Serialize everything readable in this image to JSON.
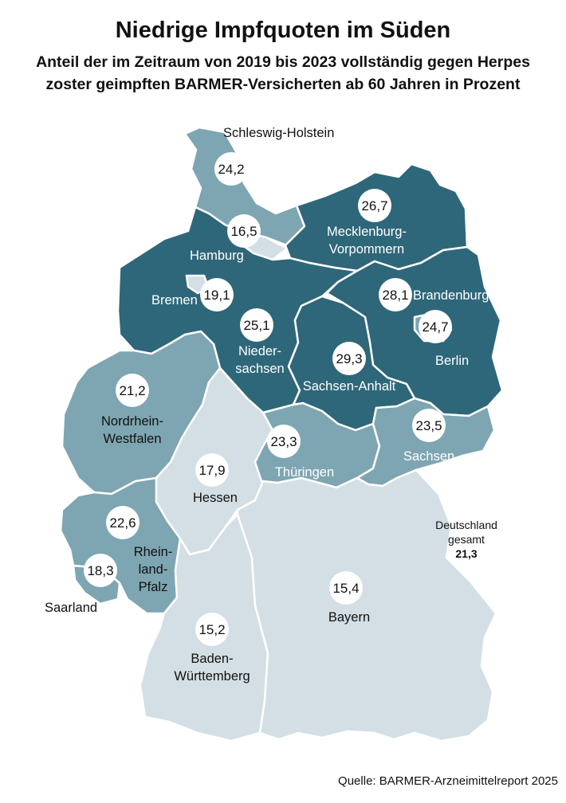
{
  "title": "Niedrige Impfquoten im Süden",
  "subtitle": "Anteil der im Zeitraum von 2019 bis 2023 vollständig gegen Herpes zoster geimpften BARMER-Versicherten ab 60 Jahren in Prozent",
  "source": "Quelle: BARMER-Arzneimittelreport 2025",
  "total": {
    "label_line1": "Deutschland",
    "label_line2": "gesamt",
    "value": "21,3"
  },
  "colors": {
    "high": "#2e6779",
    "mid": "#7ea5b2",
    "low": "#d3dfe4",
    "border": "#ffffff",
    "bubble": "#ffffff"
  },
  "states": [
    {
      "id": "schleswig-holstein",
      "name": "Schleswig-Holstein",
      "value": "24,2",
      "tier": "mid"
    },
    {
      "id": "hamburg",
      "name": "Hamburg",
      "value": "16,5",
      "tier": "low"
    },
    {
      "id": "mecklenburg-vorpommern",
      "name_lines": [
        "Mecklenburg-",
        "Vorpommern"
      ],
      "value": "26,7",
      "tier": "high"
    },
    {
      "id": "bremen",
      "name": "Bremen",
      "value": "19,1",
      "tier": "low"
    },
    {
      "id": "niedersachsen",
      "name_lines": [
        "Nieder-",
        "sachsen"
      ],
      "value": "25,1",
      "tier": "high"
    },
    {
      "id": "brandenburg",
      "name": "Brandenburg",
      "value": "28,1",
      "tier": "high"
    },
    {
      "id": "berlin",
      "name": "Berlin",
      "value": "24,7",
      "tier": "mid"
    },
    {
      "id": "sachsen-anhalt",
      "name": "Sachsen-Anhalt",
      "value": "29,3",
      "tier": "high"
    },
    {
      "id": "nordrhein-westfalen",
      "name_lines": [
        "Nordrhein-",
        "Westfalen"
      ],
      "value": "21,2",
      "tier": "mid"
    },
    {
      "id": "sachsen",
      "name": "Sachsen",
      "value": "23,5",
      "tier": "mid"
    },
    {
      "id": "thueringen",
      "name": "Thüringen",
      "value": "23,3",
      "tier": "mid"
    },
    {
      "id": "hessen",
      "name": "Hessen",
      "value": "17,9",
      "tier": "low"
    },
    {
      "id": "rheinland-pfalz",
      "name_lines": [
        "Rhein-",
        "land-",
        "Pfalz"
      ],
      "value": "22,6",
      "tier": "mid"
    },
    {
      "id": "saarland",
      "name": "Saarland",
      "value": "18,3",
      "tier": "mid"
    },
    {
      "id": "bayern",
      "name": "Bayern",
      "value": "15,4",
      "tier": "low"
    },
    {
      "id": "baden-wuerttemberg",
      "name_lines": [
        "Baden-",
        "Württemberg"
      ],
      "value": "15,2",
      "tier": "low"
    }
  ]
}
